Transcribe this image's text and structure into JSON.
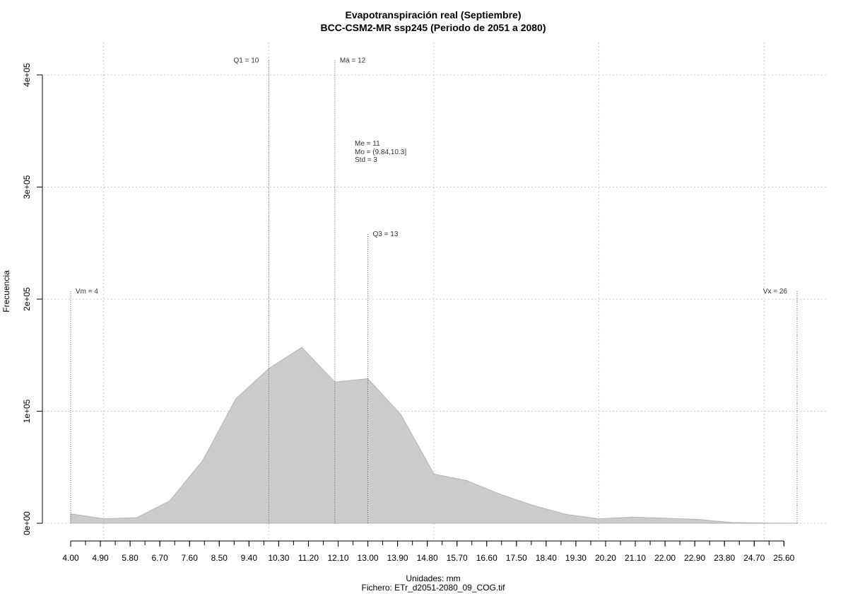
{
  "chart_data": {
    "type": "area",
    "title": "Evapotranspiración real (Septiembre)",
    "subtitle": "BCC-CSM2-MR ssp245 (Periodo de 2051 a 2080)",
    "xlabel": "Unidades: mm",
    "source": "Fichero: ETr_d2051-2080_09_COG.tif",
    "ylabel": "Frecuencia",
    "xlim": [
      4,
      26
    ],
    "ylim": [
      0,
      400000
    ],
    "x_ticks": [
      "4.00",
      "4.90",
      "5.80",
      "6.70",
      "7.60",
      "8.50",
      "9.40",
      "10.30",
      "11.20",
      "12.10",
      "13.00",
      "13.90",
      "14.80",
      "15.70",
      "16.60",
      "17.50",
      "18.40",
      "19.30",
      "20.20",
      "21.10",
      "22.00",
      "22.90",
      "23.80",
      "24.70",
      "25.60"
    ],
    "y_ticks": [
      {
        "value": 0,
        "label": "0e+00"
      },
      {
        "value": 100000,
        "label": "1e+05"
      },
      {
        "value": 200000,
        "label": "2e+05"
      },
      {
        "value": 300000,
        "label": "3e+05"
      },
      {
        "value": 400000,
        "label": "4e+05"
      }
    ],
    "grid": true,
    "fill_color": "#cccccc",
    "x": [
      4,
      5,
      6,
      7,
      8,
      9,
      10,
      11,
      12,
      13,
      14,
      15,
      16,
      17,
      18,
      19,
      20,
      21,
      22,
      23,
      24,
      25,
      26
    ],
    "values": [
      8500,
      4000,
      5000,
      20000,
      56000,
      111000,
      138000,
      157000,
      126000,
      129000,
      97000,
      44000,
      38000,
      26000,
      16000,
      8000,
      4000,
      5500,
      4500,
      3500,
      700,
      200,
      100
    ],
    "vlines": [
      {
        "label": "Vm = 4",
        "x": 4,
        "top": 207000,
        "anchor": "start"
      },
      {
        "label": "Q1 = 10",
        "x": 10,
        "top": 413000,
        "anchor": "end"
      },
      {
        "label": "Ma = 12",
        "x": 12,
        "top": 413000,
        "anchor": "start"
      },
      {
        "label": "Q3 = 13",
        "x": 13,
        "top": 258000,
        "anchor": "start"
      },
      {
        "label": "Vx = 26",
        "x": 26,
        "top": 207000,
        "anchor": "end"
      }
    ],
    "stats": {
      "mean": "Me = 11",
      "mode": "Mo = (9.84,10.3]",
      "std": "Std = 3"
    }
  }
}
